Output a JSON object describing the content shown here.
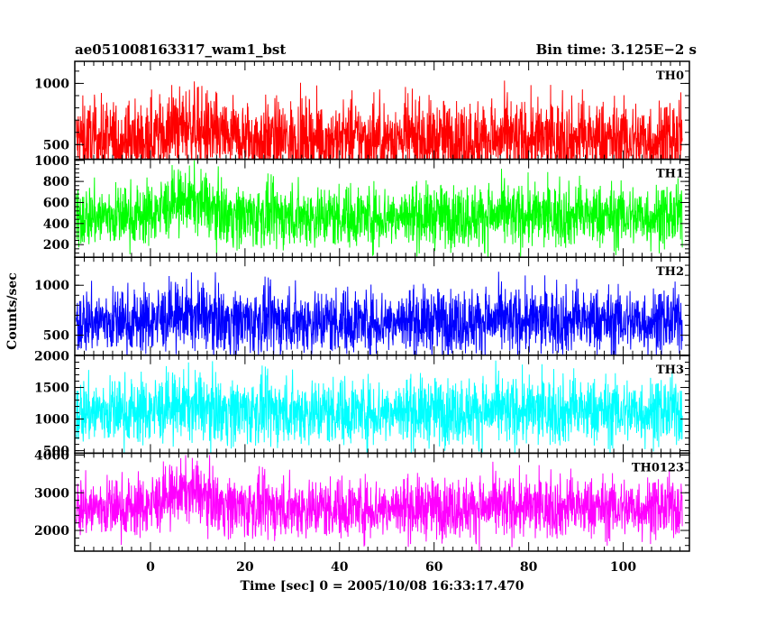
{
  "chart_data": {
    "type": "line",
    "title_left": "ae051008163317_wam1_bst",
    "title_right": "Bin time: 3.125E−2 s",
    "xlabel": "Time [sec] 0 = 2005/10/08 16:33:17.470",
    "ylabel": "Counts/sec",
    "xlim": [
      -16,
      114
    ],
    "x_data_range": [
      -15.7,
      112.5
    ],
    "xticks": [
      0,
      20,
      40,
      60,
      80,
      100
    ],
    "xtick_labels": [
      "0",
      "20",
      "40",
      "60",
      "80",
      "100"
    ],
    "grid": false,
    "panels": [
      {
        "name": "TH0",
        "color": "#ff0000",
        "ylim": [
          380,
          1180
        ],
        "yticks": [
          500,
          1000
        ],
        "ytick_labels": [
          "500",
          "1000"
        ],
        "mean": 540,
        "typical_range": [
          300,
          1050
        ],
        "peak_max": 1150,
        "burst_peak_x": 8,
        "burst_peak_mean": 650
      },
      {
        "name": "TH1",
        "color": "#00ff00",
        "ylim": [
          80,
          1010
        ],
        "yticks": [
          200,
          400,
          600,
          800,
          1000
        ],
        "ytick_labels": [
          "200",
          "400",
          "600",
          "800",
          "1000"
        ],
        "mean": 470,
        "typical_range": [
          150,
          850
        ],
        "peak_max": 1000,
        "burst_peak_x": 8,
        "burst_peak_mean": 620
      },
      {
        "name": "TH2",
        "color": "#0000ff",
        "ylim": [
          300,
          1280
        ],
        "yticks": [
          500,
          1000
        ],
        "ytick_labels": [
          "500",
          "1000"
        ],
        "mean": 640,
        "typical_range": [
          330,
          1100
        ],
        "peak_max": 1260,
        "burst_peak_x": 8,
        "burst_peak_mean": 700
      },
      {
        "name": "TH3",
        "color": "#00ffff",
        "ylim": [
          460,
          2010
        ],
        "yticks": [
          500,
          1000,
          1500,
          2000
        ],
        "ytick_labels": [
          "500",
          "1000",
          "1500",
          "2000"
        ],
        "mean": 1120,
        "typical_range": [
          600,
          1850
        ],
        "peak_max": 1980,
        "burst_peak_x": 8,
        "burst_peak_mean": 1200
      },
      {
        "name": "TH0123",
        "color": "#ff00ff",
        "ylim": [
          1450,
          4050
        ],
        "yticks": [
          2000,
          3000,
          4000
        ],
        "ytick_labels": [
          "2000",
          "3000",
          "4000"
        ],
        "mean": 2600,
        "typical_range": [
          1700,
          3600
        ],
        "peak_max": 4000,
        "burst_peak_x": 8,
        "burst_peak_mean": 3050
      }
    ]
  }
}
